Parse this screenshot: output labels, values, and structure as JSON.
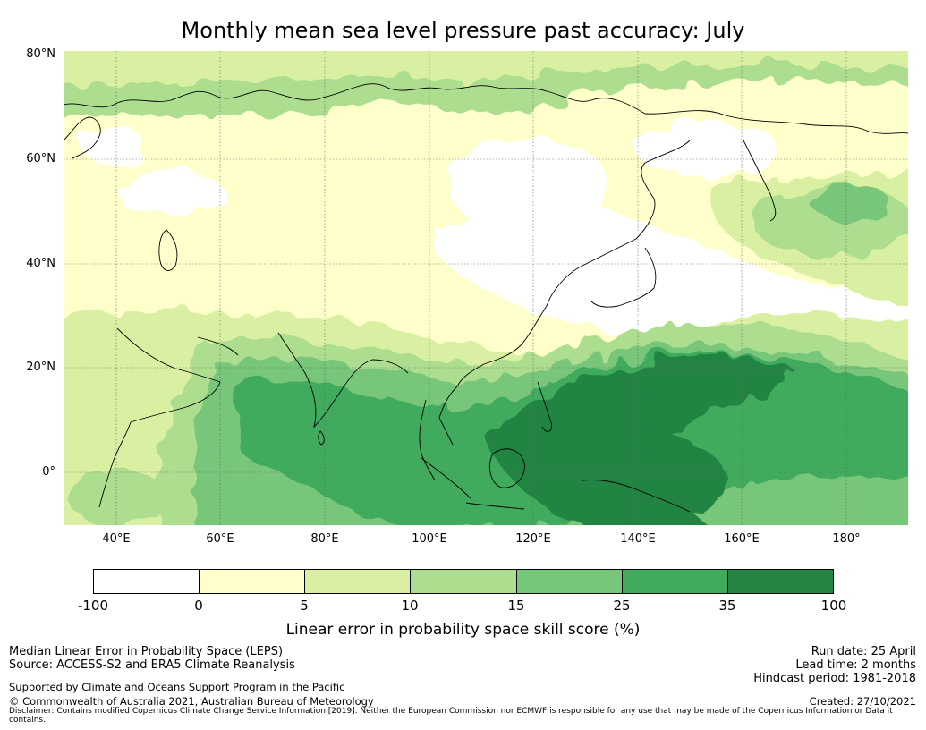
{
  "title": "Monthly mean sea level pressure past accuracy: July",
  "map": {
    "lat_labels": [
      "80°N",
      "60°N",
      "40°N",
      "20°N",
      "0°"
    ],
    "lon_labels": [
      "40°E",
      "60°E",
      "80°E",
      "100°E",
      "120°E",
      "140°E",
      "160°E",
      "180°"
    ]
  },
  "colorbar": {
    "label": "Linear error in probability space skill score (%)",
    "ticks": [
      "-100",
      "0",
      "5",
      "10",
      "15",
      "25",
      "35",
      "100"
    ],
    "colors": [
      "#ffffff",
      "#ffffcc",
      "#d9f0a3",
      "#addd8e",
      "#78c679",
      "#41ab5d",
      "#238443"
    ]
  },
  "footer": {
    "left_line1": "Median Linear Error in Probability Space (LEPS)",
    "left_line2": "Source: ACCESS-S2 and ERA5 Climate Reanalysis",
    "left_line3": "Supported by Climate and Oceans Support Program in the Pacific",
    "left_line4": "© Commonwealth of Australia 2021, Australian Bureau of Meteorology",
    "right_line1": "Run date: 25 April",
    "right_line2": "Lead time: 2 months",
    "right_line3": "Hindcast period: 1981-2018",
    "right_line4": "Created: 27/10/2021",
    "disclaimer": "Disclaimer: Contains modified Copernicus Climate Change Service Information [2019]. Neither the European Commission nor ECMWF is responsible for any use that may be made of the Copernicus Information or Data it contains."
  }
}
